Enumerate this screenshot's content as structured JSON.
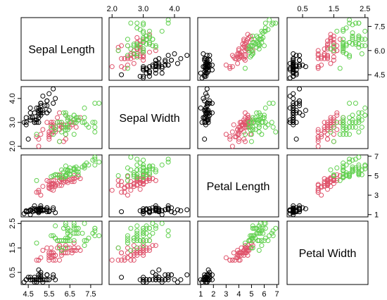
{
  "chart_data": {
    "type": "scatter",
    "variables": [
      "Sepal Length",
      "Sepal Width",
      "Petal Length",
      "Petal Width"
    ],
    "ranges": [
      [
        4.3,
        7.9
      ],
      [
        2.0,
        4.4
      ],
      [
        1.0,
        6.9
      ],
      [
        0.1,
        2.5
      ]
    ],
    "axis_ticks": {
      "top": {
        "1": [
          "2.0",
          "3.0",
          "4.0"
        ],
        "3": [
          "0.5",
          "1.5",
          "2.5"
        ]
      },
      "bottom": {
        "0": [
          "4.5",
          "5.5",
          "6.5",
          "7.5"
        ],
        "2": [
          "1",
          "2",
          "3",
          "4",
          "5",
          "6",
          "7"
        ]
      },
      "left": {
        "1": [
          "2.0",
          "3.0",
          "4.0"
        ],
        "3": [
          "0.5",
          "1.5",
          "2.5"
        ]
      },
      "right": {
        "0": [
          "4.5",
          "6.0",
          "7.5"
        ],
        "2": [
          "1",
          "3",
          "5",
          "7"
        ]
      }
    },
    "grid": false,
    "legend": "none",
    "series": [
      {
        "color": "#000000",
        "points": [
          [
            5.1,
            3.5,
            1.4,
            0.2
          ],
          [
            4.9,
            3.0,
            1.4,
            0.2
          ],
          [
            4.7,
            3.2,
            1.3,
            0.2
          ],
          [
            4.6,
            3.1,
            1.5,
            0.2
          ],
          [
            5.0,
            3.6,
            1.4,
            0.2
          ],
          [
            5.4,
            3.9,
            1.7,
            0.4
          ],
          [
            4.6,
            3.4,
            1.4,
            0.3
          ],
          [
            5.0,
            3.4,
            1.5,
            0.2
          ],
          [
            4.4,
            2.9,
            1.4,
            0.2
          ],
          [
            4.9,
            3.1,
            1.5,
            0.1
          ],
          [
            5.4,
            3.7,
            1.5,
            0.2
          ],
          [
            4.8,
            3.4,
            1.6,
            0.2
          ],
          [
            4.8,
            3.0,
            1.4,
            0.1
          ],
          [
            4.3,
            3.0,
            1.1,
            0.1
          ],
          [
            5.8,
            4.0,
            1.2,
            0.2
          ],
          [
            5.7,
            4.4,
            1.5,
            0.4
          ],
          [
            5.4,
            3.9,
            1.3,
            0.4
          ],
          [
            5.1,
            3.5,
            1.4,
            0.3
          ],
          [
            5.7,
            3.8,
            1.7,
            0.3
          ],
          [
            5.1,
            3.8,
            1.5,
            0.3
          ],
          [
            5.4,
            3.4,
            1.7,
            0.2
          ],
          [
            5.1,
            3.7,
            1.5,
            0.4
          ],
          [
            4.6,
            3.6,
            1.0,
            0.2
          ],
          [
            5.1,
            3.3,
            1.7,
            0.5
          ],
          [
            4.8,
            3.4,
            1.9,
            0.2
          ],
          [
            5.0,
            3.0,
            1.6,
            0.2
          ],
          [
            5.0,
            3.4,
            1.6,
            0.4
          ],
          [
            5.2,
            3.5,
            1.5,
            0.2
          ],
          [
            5.2,
            3.4,
            1.4,
            0.2
          ],
          [
            4.7,
            3.2,
            1.6,
            0.2
          ],
          [
            4.8,
            3.1,
            1.6,
            0.2
          ],
          [
            5.4,
            3.4,
            1.5,
            0.4
          ],
          [
            5.2,
            4.1,
            1.5,
            0.1
          ],
          [
            5.5,
            4.2,
            1.4,
            0.2
          ],
          [
            4.9,
            3.1,
            1.5,
            0.2
          ],
          [
            5.0,
            3.2,
            1.2,
            0.2
          ],
          [
            5.5,
            3.5,
            1.3,
            0.2
          ],
          [
            4.9,
            3.6,
            1.4,
            0.1
          ],
          [
            4.4,
            3.0,
            1.3,
            0.2
          ],
          [
            5.1,
            3.4,
            1.5,
            0.2
          ],
          [
            5.0,
            3.5,
            1.3,
            0.3
          ],
          [
            4.5,
            2.3,
            1.3,
            0.3
          ],
          [
            4.4,
            3.2,
            1.3,
            0.2
          ],
          [
            5.0,
            3.5,
            1.6,
            0.6
          ],
          [
            5.1,
            3.8,
            1.9,
            0.4
          ],
          [
            4.8,
            3.0,
            1.4,
            0.3
          ],
          [
            5.1,
            3.8,
            1.6,
            0.2
          ],
          [
            4.6,
            3.2,
            1.4,
            0.2
          ],
          [
            5.3,
            3.7,
            1.5,
            0.2
          ],
          [
            5.0,
            3.3,
            1.4,
            0.2
          ]
        ]
      },
      {
        "color": "#DF536B",
        "points": [
          [
            7.0,
            3.2,
            4.7,
            1.4
          ],
          [
            6.4,
            3.2,
            4.5,
            1.5
          ],
          [
            6.9,
            3.1,
            4.9,
            1.5
          ],
          [
            5.5,
            2.3,
            4.0,
            1.3
          ],
          [
            6.5,
            2.8,
            4.6,
            1.5
          ],
          [
            5.7,
            2.8,
            4.5,
            1.3
          ],
          [
            6.3,
            3.3,
            4.7,
            1.6
          ],
          [
            4.9,
            2.4,
            3.3,
            1.0
          ],
          [
            6.6,
            2.9,
            4.6,
            1.3
          ],
          [
            5.2,
            2.7,
            3.9,
            1.4
          ],
          [
            5.0,
            2.0,
            3.5,
            1.0
          ],
          [
            5.9,
            3.0,
            4.2,
            1.5
          ],
          [
            6.0,
            2.2,
            4.0,
            1.0
          ],
          [
            6.1,
            2.9,
            4.7,
            1.4
          ],
          [
            5.6,
            2.9,
            3.6,
            1.3
          ],
          [
            6.7,
            3.1,
            4.4,
            1.4
          ],
          [
            5.6,
            3.0,
            4.5,
            1.5
          ],
          [
            5.8,
            2.7,
            4.1,
            1.0
          ],
          [
            6.2,
            2.2,
            4.5,
            1.5
          ],
          [
            5.6,
            2.5,
            3.9,
            1.1
          ],
          [
            5.9,
            3.2,
            4.8,
            1.8
          ],
          [
            6.1,
            2.8,
            4.0,
            1.3
          ],
          [
            6.3,
            2.5,
            4.9,
            1.5
          ],
          [
            6.1,
            2.8,
            4.7,
            1.2
          ],
          [
            6.4,
            2.9,
            4.3,
            1.3
          ],
          [
            6.6,
            3.0,
            4.4,
            1.4
          ],
          [
            6.8,
            2.8,
            4.8,
            1.4
          ],
          [
            6.7,
            3.0,
            5.0,
            1.7
          ],
          [
            6.0,
            2.9,
            4.5,
            1.5
          ],
          [
            5.7,
            2.6,
            3.5,
            1.0
          ],
          [
            5.5,
            2.4,
            3.8,
            1.1
          ],
          [
            5.5,
            2.4,
            3.7,
            1.0
          ],
          [
            5.8,
            2.7,
            3.9,
            1.2
          ],
          [
            6.0,
            2.7,
            5.1,
            1.6
          ],
          [
            5.4,
            3.0,
            4.5,
            1.5
          ],
          [
            6.0,
            3.4,
            4.5,
            1.6
          ],
          [
            6.7,
            3.1,
            4.7,
            1.5
          ],
          [
            6.3,
            2.3,
            4.4,
            1.3
          ],
          [
            5.6,
            3.0,
            4.1,
            1.3
          ],
          [
            5.5,
            2.5,
            4.0,
            1.3
          ],
          [
            5.5,
            2.6,
            4.4,
            1.2
          ],
          [
            6.1,
            3.0,
            4.6,
            1.4
          ],
          [
            5.8,
            2.6,
            4.0,
            1.2
          ],
          [
            5.0,
            2.3,
            3.3,
            1.0
          ],
          [
            5.6,
            2.7,
            4.2,
            1.3
          ],
          [
            5.7,
            3.0,
            4.2,
            1.2
          ],
          [
            5.7,
            2.9,
            4.2,
            1.3
          ],
          [
            6.2,
            2.9,
            4.3,
            1.3
          ],
          [
            5.1,
            2.5,
            3.0,
            1.1
          ],
          [
            5.7,
            2.8,
            4.1,
            1.3
          ]
        ]
      },
      {
        "color": "#61D04F",
        "points": [
          [
            6.3,
            3.3,
            6.0,
            2.5
          ],
          [
            5.8,
            2.7,
            5.1,
            1.9
          ],
          [
            7.1,
            3.0,
            5.9,
            2.1
          ],
          [
            6.3,
            2.9,
            5.6,
            1.8
          ],
          [
            6.5,
            3.0,
            5.8,
            2.2
          ],
          [
            7.6,
            3.0,
            6.6,
            2.1
          ],
          [
            4.9,
            2.5,
            4.5,
            1.7
          ],
          [
            7.3,
            2.9,
            6.3,
            1.8
          ],
          [
            6.7,
            2.5,
            5.8,
            1.8
          ],
          [
            7.2,
            3.6,
            6.1,
            2.5
          ],
          [
            6.5,
            3.2,
            5.1,
            2.0
          ],
          [
            6.4,
            2.7,
            5.3,
            1.9
          ],
          [
            6.8,
            3.0,
            5.5,
            2.1
          ],
          [
            5.7,
            2.5,
            5.0,
            2.0
          ],
          [
            5.8,
            2.8,
            5.1,
            2.4
          ],
          [
            6.4,
            3.2,
            5.3,
            2.3
          ],
          [
            6.5,
            3.0,
            5.5,
            1.8
          ],
          [
            7.7,
            3.8,
            6.7,
            2.2
          ],
          [
            7.7,
            2.6,
            6.9,
            2.3
          ],
          [
            6.0,
            2.2,
            5.0,
            1.5
          ],
          [
            6.9,
            3.2,
            5.7,
            2.3
          ],
          [
            5.6,
            2.8,
            4.9,
            2.0
          ],
          [
            7.7,
            2.8,
            6.7,
            2.0
          ],
          [
            6.3,
            2.7,
            4.9,
            1.8
          ],
          [
            6.7,
            3.3,
            5.7,
            2.1
          ],
          [
            7.2,
            3.2,
            6.0,
            1.8
          ],
          [
            6.2,
            2.8,
            4.8,
            1.8
          ],
          [
            6.1,
            3.0,
            4.9,
            1.8
          ],
          [
            6.4,
            2.8,
            5.6,
            2.1
          ],
          [
            7.2,
            3.0,
            5.8,
            1.6
          ],
          [
            7.4,
            2.8,
            6.1,
            1.9
          ],
          [
            7.9,
            3.8,
            6.4,
            2.0
          ],
          [
            6.4,
            2.8,
            5.6,
            2.2
          ],
          [
            6.3,
            2.8,
            5.1,
            1.5
          ],
          [
            6.1,
            2.6,
            5.6,
            1.4
          ],
          [
            7.7,
            3.0,
            6.1,
            2.3
          ],
          [
            6.3,
            3.4,
            5.6,
            2.4
          ],
          [
            6.4,
            3.1,
            5.5,
            1.8
          ],
          [
            6.0,
            3.0,
            4.8,
            1.8
          ],
          [
            6.9,
            3.1,
            5.4,
            2.1
          ],
          [
            6.7,
            3.1,
            5.6,
            2.4
          ],
          [
            6.9,
            3.1,
            5.1,
            2.3
          ],
          [
            5.8,
            2.7,
            5.1,
            1.9
          ],
          [
            6.8,
            3.2,
            5.9,
            2.3
          ],
          [
            6.7,
            3.3,
            5.7,
            2.5
          ],
          [
            6.7,
            3.0,
            5.2,
            2.3
          ],
          [
            6.3,
            2.5,
            5.0,
            1.9
          ],
          [
            6.5,
            3.0,
            5.2,
            2.0
          ],
          [
            6.2,
            3.4,
            5.4,
            2.3
          ],
          [
            5.9,
            3.0,
            5.1,
            1.8
          ]
        ]
      }
    ]
  }
}
